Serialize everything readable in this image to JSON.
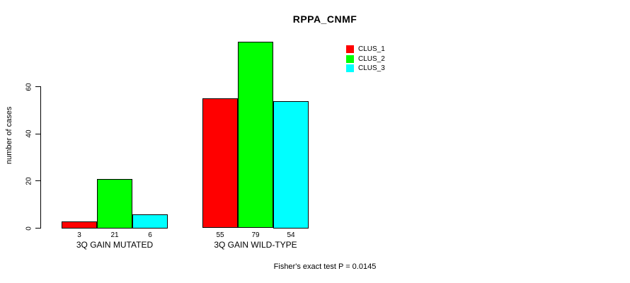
{
  "chart_data": {
    "type": "bar",
    "title": "RPPA_CNMF",
    "xlabel": "",
    "ylabel": "number of cases",
    "categories": [
      "3Q GAIN MUTATED",
      "3Q GAIN WILD-TYPE"
    ],
    "series": [
      {
        "name": "CLUS_1",
        "color": "#ff0000",
        "values": [
          3,
          55
        ]
      },
      {
        "name": "CLUS_2",
        "color": "#00ff00",
        "values": [
          21,
          79
        ]
      },
      {
        "name": "CLUS_3",
        "color": "#00ffff",
        "values": [
          6,
          54
        ]
      }
    ],
    "yticks": [
      0,
      20,
      40,
      60
    ],
    "ylim": [
      0,
      79.2
    ],
    "grid": false,
    "bar_value_labels_shown": true,
    "legend_position": "top-right",
    "annotation": "Fisher's exact test P = 0.0145"
  }
}
